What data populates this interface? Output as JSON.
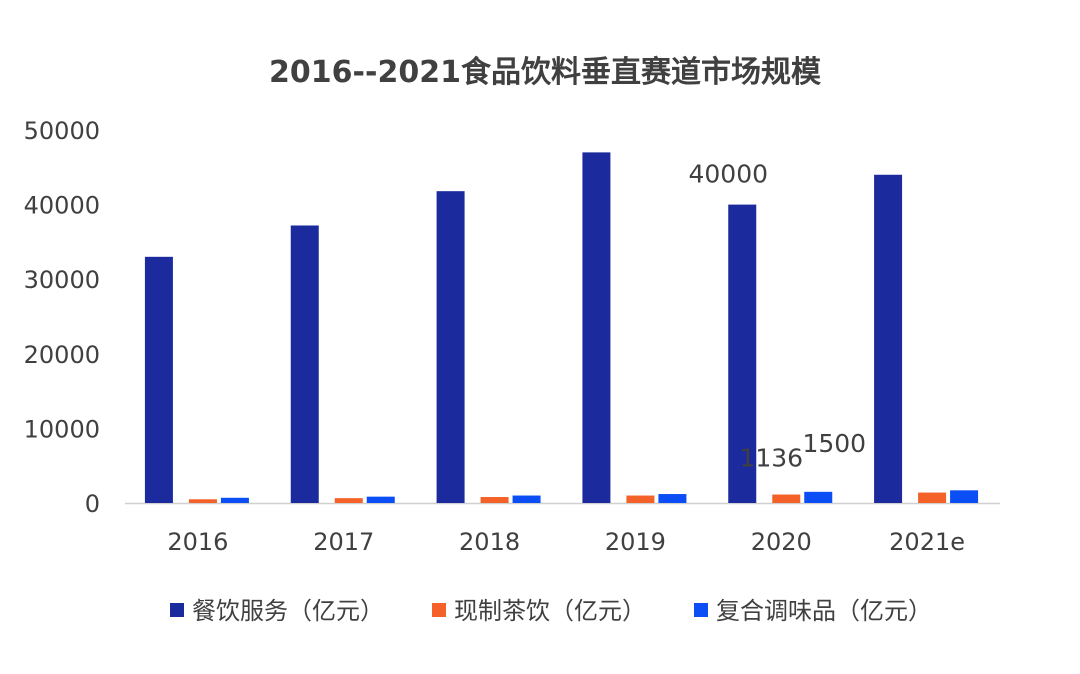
{
  "chart_data": {
    "type": "bar",
    "title": "2016--2021食品饮料垂直赛道市场规模",
    "categories": [
      "2016",
      "2017",
      "2018",
      "2019",
      "2020",
      "2021e"
    ],
    "series": [
      {
        "name": "餐饮服务（亿元）",
        "color": "#1b2a9c",
        "values": [
          33000,
          37200,
          41800,
          47000,
          40000,
          44000
        ]
      },
      {
        "name": "现制茶饮（亿元）",
        "color": "#f4622a",
        "values": [
          500,
          650,
          800,
          1000,
          1136,
          1400
        ]
      },
      {
        "name": "复合调味品（亿元）",
        "color": "#0c4ef5",
        "values": [
          700,
          850,
          1000,
          1200,
          1500,
          1700
        ]
      }
    ],
    "data_labels": [
      {
        "series": 0,
        "category": "2020",
        "text": "40000"
      },
      {
        "series": 1,
        "category": "2020",
        "text": "1136"
      },
      {
        "series": 2,
        "category": "2020",
        "text": "1500"
      }
    ],
    "yticks": [
      "0",
      "10000",
      "20000",
      "30000",
      "40000",
      "50000"
    ],
    "ylim": [
      0,
      50000
    ],
    "xlabel": "",
    "ylabel": "",
    "grid": false,
    "legend_position": "bottom"
  }
}
